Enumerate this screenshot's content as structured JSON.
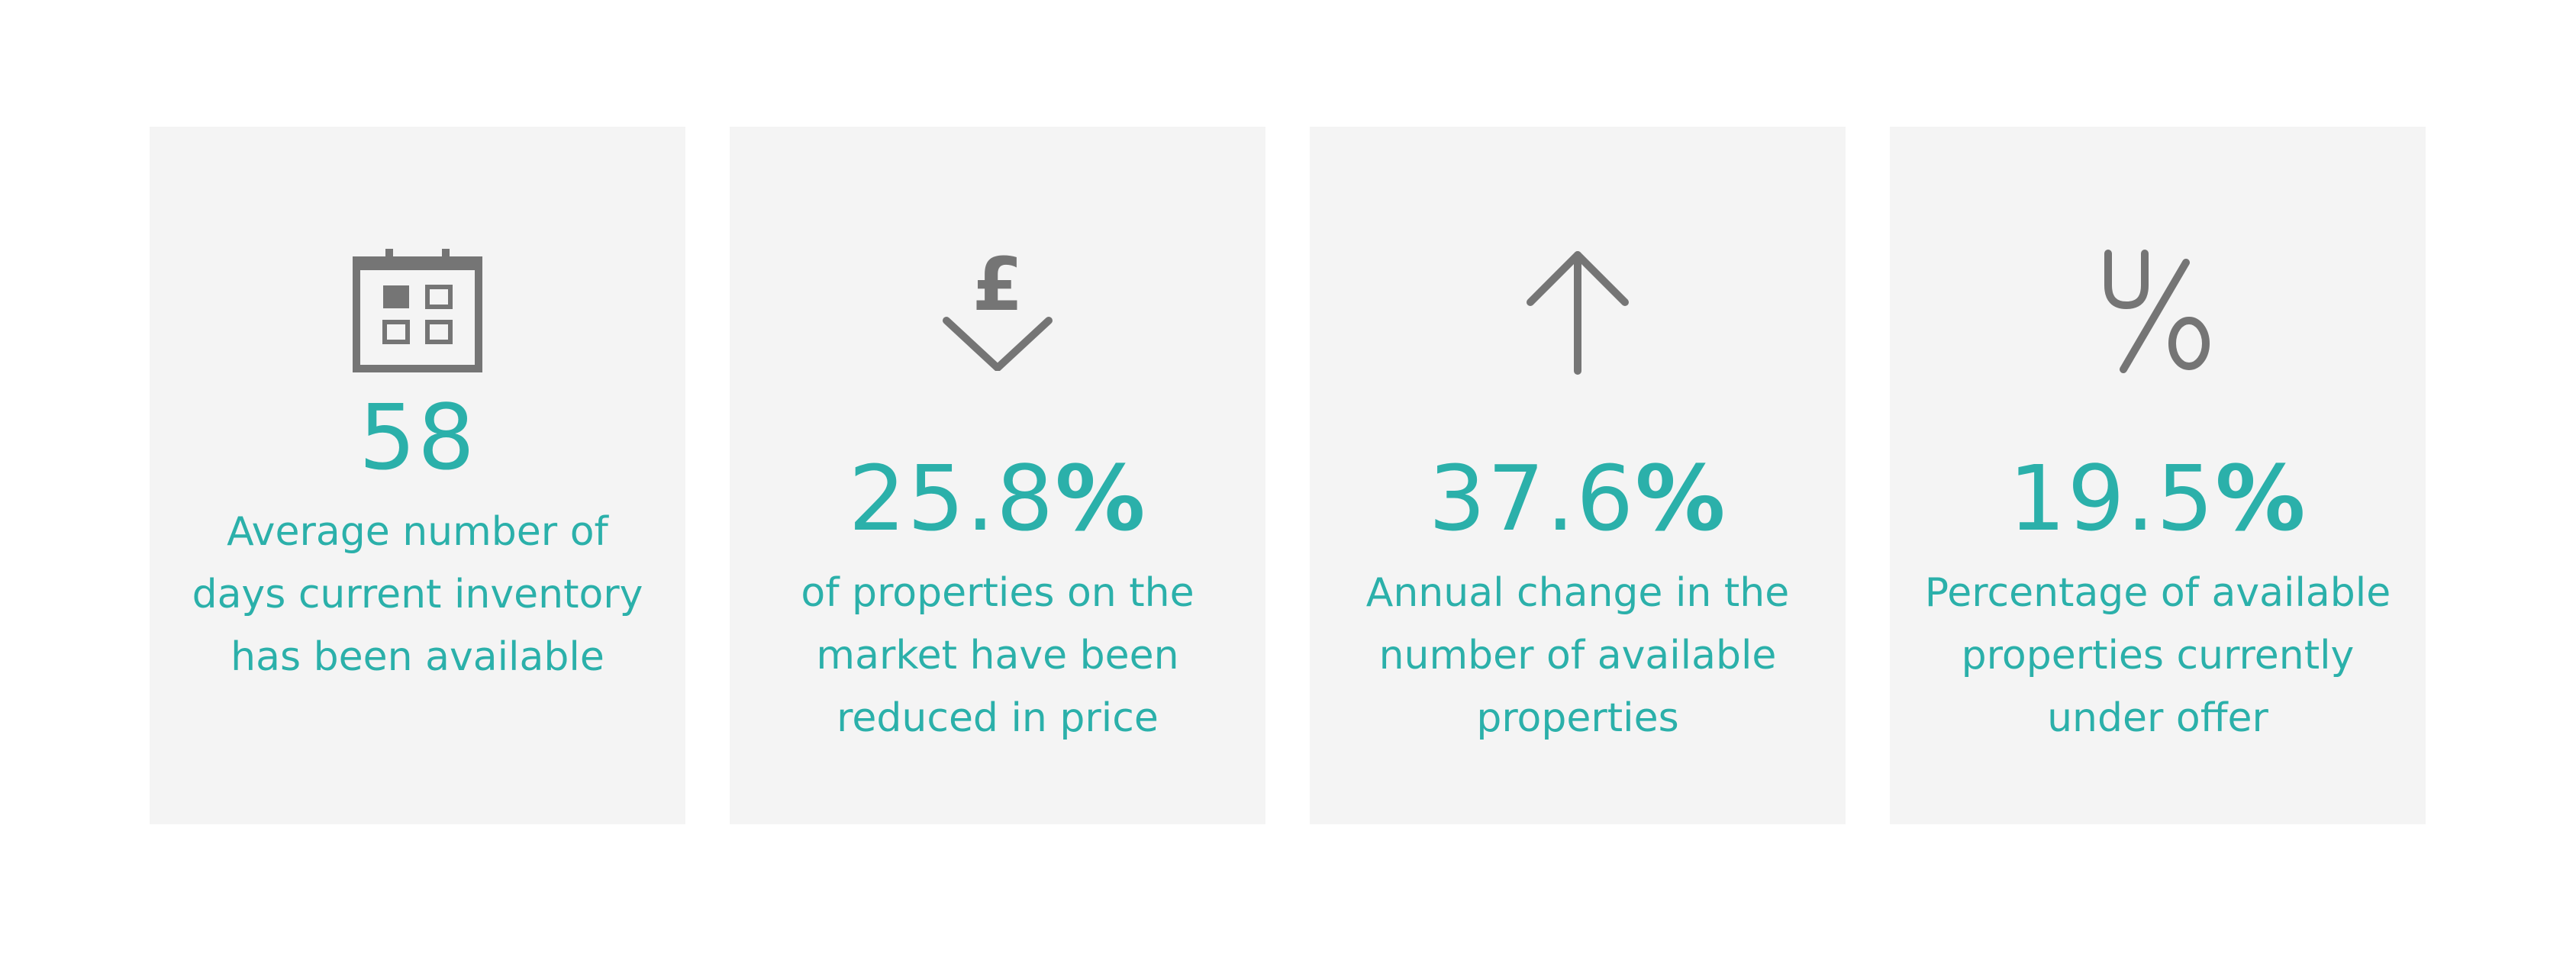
{
  "stats": [
    {
      "icon": "calendar-icon",
      "value": "58",
      "unit": "",
      "description": "Average number of days current inventory has been available"
    },
    {
      "icon": "pound-down-arrow-icon",
      "value": "25.8",
      "unit": "%",
      "description": "of properties on the market have been reduced in price"
    },
    {
      "icon": "arrow-up-icon",
      "value": "37.6",
      "unit": "%",
      "description": "Annual change in the number of available properties"
    },
    {
      "icon": "uo-percent-icon",
      "value": "19.5",
      "unit": "%",
      "description": "Percentage of available properties currently under offer"
    }
  ],
  "colors": {
    "accent": "#2bb0aa",
    "icon": "#757575",
    "card_background": "#f4f4f4"
  }
}
